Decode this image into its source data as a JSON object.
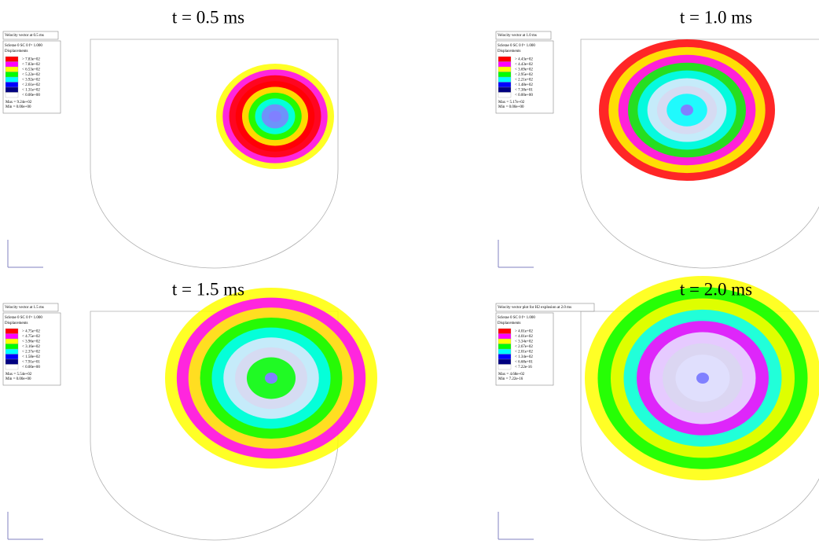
{
  "panels": [
    {
      "title": "t = 0.5 ms",
      "legend": {
        "heading": "Velocity vector at 0.5 ms",
        "subheading": "Sclerae 0 SC 0 f= 1.000",
        "quantity": "Displacements",
        "levels": [
          "> 7.83e+02",
          "< 7.83e+02",
          "< 6.53e+02",
          "< 5.22e+02",
          "< 3.92e+02",
          "< 2.61e+02",
          "< 1.31e+02",
          "< 0.00e+00"
        ],
        "max": "Max = 9.24e+02",
        "min": "Min = 0.00e+00"
      }
    },
    {
      "title": "t = 1.0 ms",
      "legend": {
        "heading": "Velocity vector at 1.0 ms",
        "subheading": "Sclerae 0 SC 0 f= 1.000",
        "quantity": "Displacements",
        "levels": [
          "> 4.43e+02",
          "< 4.43e+02",
          "< 3.69e+02",
          "< 2.95e+02",
          "< 2.21e+02",
          "< 1.48e+02",
          "< 7.38e+01",
          "< 0.00e+00"
        ],
        "max": "Max = 5.17e+02",
        "min": "Min = 0.00e+00"
      }
    },
    {
      "title": "t = 1.5 ms",
      "legend": {
        "heading": "Velocity vector at 1.5 ms",
        "subheading": "Sclerae 0 SC 0 f= 1.000",
        "quantity": "Displacements",
        "levels": [
          "> 4.75e+02",
          "< 4.75e+02",
          "< 3.96e+02",
          "< 3.16e+02",
          "< 2.37e+02",
          "< 1.58e+02",
          "< 7.91e+01",
          "< 0.00e+00"
        ],
        "max": "Max = 5.54e+02",
        "min": "Min = 0.00e+00"
      }
    },
    {
      "title": "t = 2.0 ms",
      "legend": {
        "heading": "Velocity vector plot for H2 explosion at 2.0 ms",
        "subheading": "Sclerae 0 SC 0 f= 1.000",
        "quantity": "Displacements",
        "levels": [
          "> 4.01e+02",
          "< 4.01e+02",
          "< 3.34e+02",
          "< 2.67e+02",
          "< 2.01e+02",
          "< 1.34e+02",
          "< 6.68e+01",
          "< 7.22e-16"
        ],
        "max": "Max = 4.68e+02",
        "min": "Min = 7.22e-16"
      }
    }
  ]
}
